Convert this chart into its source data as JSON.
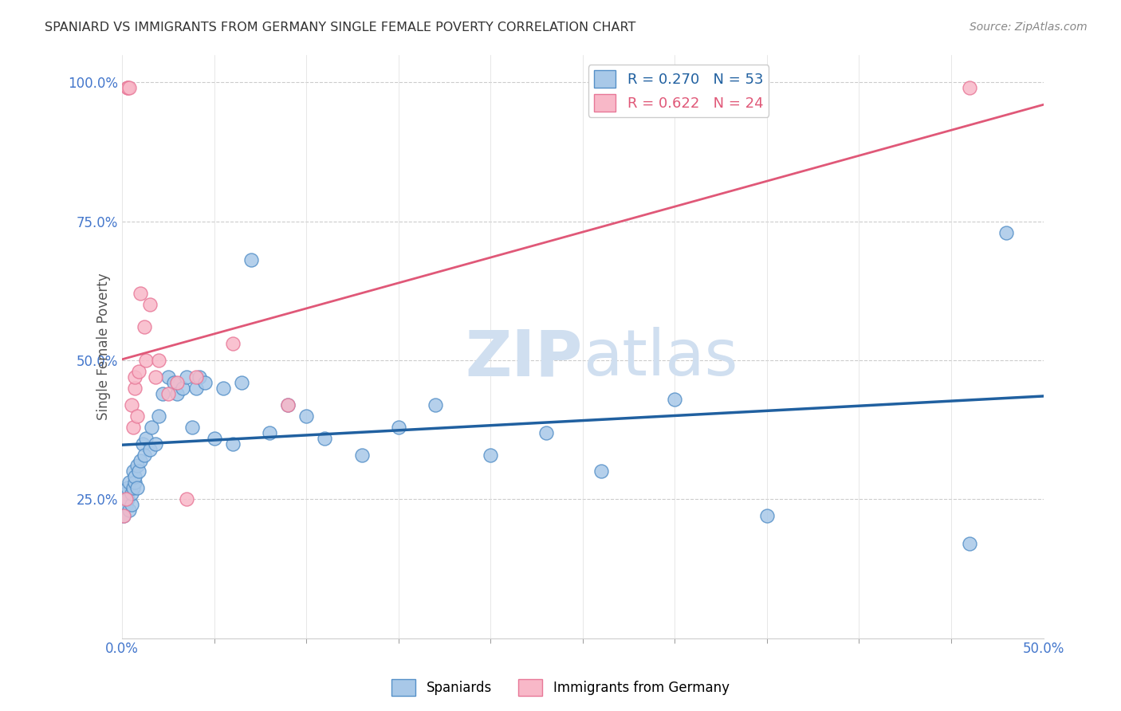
{
  "title": "SPANIARD VS IMMIGRANTS FROM GERMANY SINGLE FEMALE POVERTY CORRELATION CHART",
  "source": "Source: ZipAtlas.com",
  "ylabel": "Single Female Poverty",
  "legend_spaniards": "Spaniards",
  "legend_immigrants": "Immigrants from Germany",
  "r_spaniards": 0.27,
  "n_spaniards": 53,
  "r_immigrants": 0.622,
  "n_immigrants": 24,
  "blue_scatter_color": "#a8c8e8",
  "blue_edge_color": "#5590c8",
  "pink_scatter_color": "#f8b8c8",
  "pink_edge_color": "#e87898",
  "blue_line_color": "#2060a0",
  "pink_line_color": "#e05878",
  "watermark_color": "#d0dff0",
  "background_color": "#ffffff",
  "spaniards_x": [
    0.001,
    0.002,
    0.002,
    0.003,
    0.003,
    0.004,
    0.004,
    0.005,
    0.005,
    0.006,
    0.006,
    0.007,
    0.007,
    0.008,
    0.008,
    0.009,
    0.01,
    0.011,
    0.012,
    0.013,
    0.015,
    0.016,
    0.018,
    0.02,
    0.022,
    0.025,
    0.028,
    0.03,
    0.033,
    0.035,
    0.038,
    0.04,
    0.042,
    0.045,
    0.05,
    0.055,
    0.06,
    0.065,
    0.07,
    0.08,
    0.09,
    0.1,
    0.11,
    0.13,
    0.15,
    0.17,
    0.2,
    0.23,
    0.26,
    0.3,
    0.35,
    0.46,
    0.48
  ],
  "spaniards_y": [
    0.22,
    0.24,
    0.26,
    0.25,
    0.27,
    0.23,
    0.28,
    0.24,
    0.26,
    0.27,
    0.3,
    0.28,
    0.29,
    0.27,
    0.31,
    0.3,
    0.32,
    0.35,
    0.33,
    0.36,
    0.34,
    0.38,
    0.35,
    0.4,
    0.44,
    0.47,
    0.46,
    0.44,
    0.45,
    0.47,
    0.38,
    0.45,
    0.47,
    0.46,
    0.36,
    0.45,
    0.35,
    0.46,
    0.68,
    0.37,
    0.42,
    0.4,
    0.36,
    0.33,
    0.38,
    0.42,
    0.33,
    0.37,
    0.3,
    0.43,
    0.22,
    0.17,
    0.73
  ],
  "immigrants_x": [
    0.001,
    0.002,
    0.003,
    0.003,
    0.004,
    0.005,
    0.006,
    0.007,
    0.007,
    0.008,
    0.009,
    0.01,
    0.012,
    0.013,
    0.015,
    0.018,
    0.02,
    0.025,
    0.03,
    0.035,
    0.04,
    0.06,
    0.09,
    0.46
  ],
  "immigrants_y": [
    0.22,
    0.25,
    0.99,
    0.99,
    0.99,
    0.42,
    0.38,
    0.45,
    0.47,
    0.4,
    0.48,
    0.62,
    0.56,
    0.5,
    0.6,
    0.47,
    0.5,
    0.44,
    0.46,
    0.25,
    0.47,
    0.53,
    0.42,
    0.99
  ],
  "xlim": [
    0.0,
    0.5
  ],
  "ylim": [
    0.0,
    1.05
  ],
  "xticks": [
    0.0,
    0.5
  ],
  "yticks": [
    0.25,
    0.5,
    0.75,
    1.0
  ],
  "ytick_labels": [
    "25.0%",
    "50.0%",
    "75.0%",
    "100.0%"
  ],
  "xgrid_ticks": [
    0.0,
    0.05,
    0.1,
    0.15,
    0.2,
    0.25,
    0.3,
    0.35,
    0.4,
    0.45,
    0.5
  ]
}
